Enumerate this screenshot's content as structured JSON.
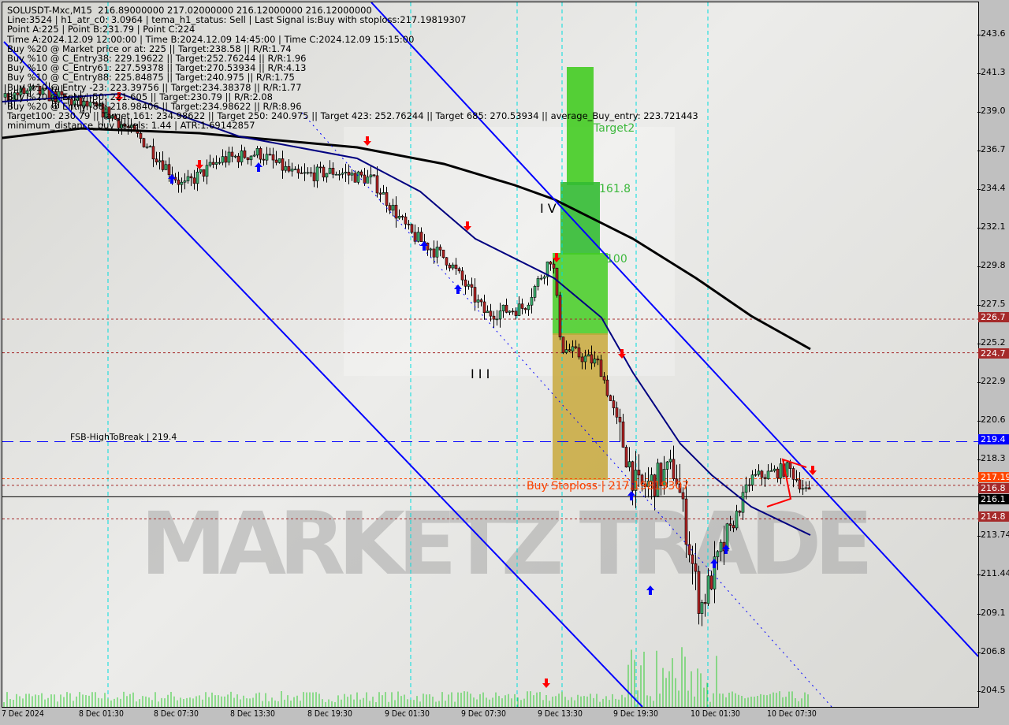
{
  "header": {
    "lines": [
      "SOLUSDT-Mxc,M15  216.89000000 217.02000000 216.12000000 216.12000000",
      "Line:3524 | h1_atr_c0: 3.0964 | tema_h1_status: Sell | Last Signal is:Buy with stoploss:217.19819307",
      "Point A:225 | Point B:231.79 | Point C:224",
      "Time A:2024.12.09 12:00:00 | Time B:2024.12.09 14:45:00 | Time C:2024.12.09 15:15:00",
      "Buy %20 @ Market price or at: 225 || Target:238.58 || R/R:1.74",
      "Buy %10 @ C_Entry38: 229.19622 || Target:252.76244 || R/R:1.96",
      "Buy %10 @ C_Entry61: 227.59378 || Target:270.53934 || R/R:4.13",
      "Buy %10 @ C_Entry88: 225.84875 || Target:240.975 || R/R:1.75",
      "Buy %10 @ Entry -23: 223.39756 || Target:234.38378 || R/R:1.77",
      "Buy %20 @ Entry -50: 221.605 || Target:230.79 || R/R:2.08",
      "Buy %20 @ Entry -88: 218.98406 || Target:234.98622 || R/R:8.96",
      "Target100: 230.79 || Target 161: 234.98622 || Target 250: 240.975 || Target 423: 252.76244 || Target 685: 270.53934 || average_Buy_entry: 223.721443",
      "minimum_distance_buy_levels: 1.44 | ATR:1.69142857"
    ]
  },
  "annotations": {
    "target2": "Target2",
    "fib161": "161.8",
    "fib100": "100",
    "wave4": "I V",
    "wave3": "I I I",
    "fsb": "FSB-HighToBreak | 219.4",
    "stoploss": "Buy Stoploss | 217.19819307",
    "watermark": "MARKETZ TRADE"
  },
  "colors": {
    "bull": "#3cb371",
    "bear": "#b22222",
    "ma_long": "#000000",
    "ma_short": "#000080",
    "channel": "#0000ff",
    "target_green": "#44cc22",
    "stop_zone": "#c8a83c",
    "level_brown": "#a52a2a",
    "level_blue": "#0000ff",
    "level_orange": "#ff4500",
    "volume": "#32cd32"
  },
  "chart_data": {
    "type": "candlestick",
    "symbol": "SOLUSDT-Mxc",
    "timeframe": "M15",
    "ylim": [
      204.5,
      243.6
    ],
    "y_ticks": [
      "243.6",
      "241.3",
      "239.0",
      "236.7",
      "234.4",
      "232.1",
      "229.8",
      "227.5",
      "225.2",
      "222.9",
      "220.6",
      "218.3",
      "213.74",
      "211.44",
      "209.1",
      "206.8",
      "204.5"
    ],
    "x_ticks": [
      "7 Dec 2024",
      "8 Dec 01:30",
      "8 Dec 07:30",
      "8 Dec 13:30",
      "8 Dec 19:30",
      "9 Dec 01:30",
      "9 Dec 07:30",
      "9 Dec 13:30",
      "9 Dec 19:30",
      "10 Dec 01:30",
      "10 Dec 07:30"
    ],
    "close_path": [
      {
        "t": "2024-12-07 16:30",
        "p": 239.8
      },
      {
        "t": "2024-12-07 19:30",
        "p": 240.3
      },
      {
        "t": "2024-12-07 22:30",
        "p": 239.7
      },
      {
        "t": "2024-12-08 01:30",
        "p": 239.0
      },
      {
        "t": "2024-12-08 04:30",
        "p": 237.2
      },
      {
        "t": "2024-12-08 07:30",
        "p": 234.6
      },
      {
        "t": "2024-12-08 10:30",
        "p": 236.2
      },
      {
        "t": "2024-12-08 13:30",
        "p": 236.6
      },
      {
        "t": "2024-12-08 16:30",
        "p": 235.2
      },
      {
        "t": "2024-12-08 19:30",
        "p": 235.5
      },
      {
        "t": "2024-12-08 22:30",
        "p": 235.0
      },
      {
        "t": "2024-12-09 01:30",
        "p": 231.8
      },
      {
        "t": "2024-12-09 04:30",
        "p": 230.2
      },
      {
        "t": "2024-12-09 07:30",
        "p": 227.0
      },
      {
        "t": "2024-12-09 10:30",
        "p": 227.4
      },
      {
        "t": "2024-12-09 12:45",
        "p": 230.5
      },
      {
        "t": "2024-12-09 13:30",
        "p": 225.0
      },
      {
        "t": "2024-12-09 16:30",
        "p": 224.0
      },
      {
        "t": "2024-12-09 19:30",
        "p": 216.5
      },
      {
        "t": "2024-12-09 22:30",
        "p": 217.8
      },
      {
        "t": "2024-12-10 00:30",
        "p": 209.5
      },
      {
        "t": "2024-12-10 01:30",
        "p": 211.5
      },
      {
        "t": "2024-12-10 04:30",
        "p": 217.2
      },
      {
        "t": "2024-12-10 07:30",
        "p": 217.8
      },
      {
        "t": "2024-12-10 09:15",
        "p": 216.12
      }
    ],
    "levels": [
      {
        "label": "226.7",
        "value": 226.7,
        "color": "#a52a2a",
        "style": "dashed"
      },
      {
        "label": "224.7",
        "value": 224.7,
        "color": "#a52a2a",
        "style": "dashed"
      },
      {
        "label": "219.4",
        "value": 219.4,
        "color": "#0000ff",
        "style": "longdash"
      },
      {
        "label": "217.19",
        "value": 217.19,
        "color": "#ff4500",
        "style": "dashed"
      },
      {
        "label": "216.8",
        "value": 216.8,
        "color": "#a52a2a",
        "style": "dashed"
      },
      {
        "label": "216.1",
        "value": 216.12,
        "color": "#000000",
        "style": "solid"
      },
      {
        "label": "214.8",
        "value": 214.8,
        "color": "#a52a2a",
        "style": "dashed"
      }
    ]
  }
}
